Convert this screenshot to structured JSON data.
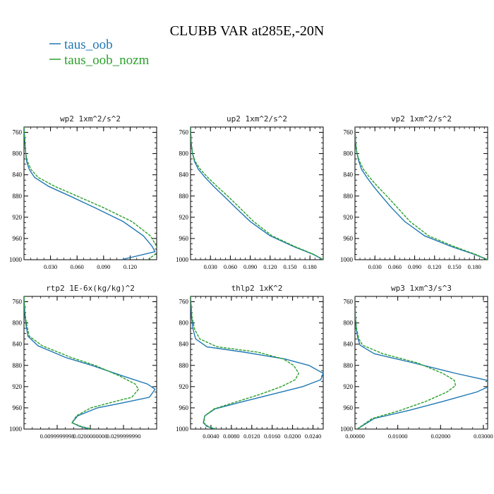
{
  "figure": {
    "title": "CLUBB VAR at285E,-20N",
    "legend": [
      {
        "label": "taus_oob",
        "color": "#1f77b4"
      },
      {
        "label": "taus_oob_nozm",
        "color": "#2ca02c"
      }
    ]
  },
  "chart_data": [
    {
      "type": "line",
      "title": "wp2  1xm^2/s^2",
      "xlim": [
        0.0,
        0.15
      ],
      "ylim": [
        1000,
        750
      ],
      "y_ticks": [
        760,
        800,
        840,
        880,
        920,
        960,
        1000
      ],
      "x_ticks": [
        0.03,
        0.06,
        0.09,
        0.12
      ],
      "x_tick_labels": [
        "0.030",
        "0.060",
        "0.090",
        "0.120"
      ],
      "series": [
        {
          "name": "taus_oob",
          "x": [
            0.0,
            0.001,
            0.002,
            0.003,
            0.006,
            0.012,
            0.028,
            0.052,
            0.08,
            0.112,
            0.135,
            0.145,
            0.148,
            0.11
          ],
          "y": [
            750,
            780,
            800,
            815,
            830,
            845,
            862,
            880,
            902,
            928,
            955,
            975,
            985,
            1000
          ]
        },
        {
          "name": "taus_oob_nozm",
          "x": [
            0.0,
            0.001,
            0.002,
            0.004,
            0.008,
            0.016,
            0.035,
            0.06,
            0.09,
            0.122,
            0.143,
            0.15,
            0.152,
            0.14
          ],
          "y": [
            750,
            780,
            800,
            815,
            830,
            845,
            862,
            880,
            902,
            928,
            955,
            975,
            985,
            1000
          ]
        }
      ]
    },
    {
      "type": "line",
      "title": "up2  1xm^2/s^2",
      "xlim": [
        0.0,
        0.2
      ],
      "ylim": [
        1000,
        750
      ],
      "y_ticks": [
        760,
        800,
        840,
        880,
        920,
        960,
        1000
      ],
      "x_ticks": [
        0.03,
        0.06,
        0.09,
        0.12,
        0.15,
        0.18
      ],
      "x_tick_labels": [
        "0.030",
        "0.060",
        "0.090",
        "0.120",
        "0.150",
        "0.180"
      ],
      "series": [
        {
          "name": "taus_oob",
          "x": [
            0.0,
            0.001,
            0.003,
            0.006,
            0.012,
            0.022,
            0.035,
            0.05,
            0.068,
            0.09,
            0.12,
            0.155,
            0.185,
            0.2
          ],
          "y": [
            750,
            780,
            800,
            815,
            830,
            845,
            862,
            880,
            902,
            928,
            955,
            975,
            990,
            1000
          ]
        },
        {
          "name": "taus_oob_nozm",
          "x": [
            0.0,
            0.001,
            0.003,
            0.007,
            0.015,
            0.026,
            0.04,
            0.056,
            0.074,
            0.095,
            0.123,
            0.157,
            0.186,
            0.2
          ],
          "y": [
            750,
            780,
            800,
            815,
            830,
            845,
            862,
            880,
            902,
            928,
            955,
            975,
            990,
            1000
          ]
        }
      ]
    },
    {
      "type": "line",
      "title": "vp2  1xm^2/s^2",
      "xlim": [
        0.0,
        0.2
      ],
      "ylim": [
        1000,
        750
      ],
      "y_ticks": [
        760,
        800,
        840,
        880,
        920,
        960,
        1000
      ],
      "x_ticks": [
        0.03,
        0.06,
        0.09,
        0.12,
        0.15,
        0.18
      ],
      "x_tick_labels": [
        "0.030",
        "0.060",
        "0.090",
        "0.120",
        "0.150",
        "0.180"
      ],
      "series": [
        {
          "name": "taus_oob",
          "x": [
            0.0,
            0.001,
            0.003,
            0.006,
            0.01,
            0.018,
            0.028,
            0.04,
            0.055,
            0.075,
            0.105,
            0.145,
            0.18,
            0.2
          ],
          "y": [
            750,
            780,
            800,
            815,
            830,
            845,
            862,
            880,
            902,
            928,
            955,
            975,
            990,
            1000
          ]
        },
        {
          "name": "taus_oob_nozm",
          "x": [
            0.0,
            0.001,
            0.003,
            0.007,
            0.013,
            0.022,
            0.034,
            0.048,
            0.064,
            0.083,
            0.111,
            0.149,
            0.182,
            0.2
          ],
          "y": [
            750,
            780,
            800,
            815,
            830,
            845,
            862,
            880,
            902,
            928,
            955,
            975,
            990,
            1000
          ]
        }
      ]
    },
    {
      "type": "line",
      "title": "rtp2  1E-6x(kg/kg)^2",
      "xlim": [
        0.0,
        0.04
      ],
      "ylim": [
        1000,
        750
      ],
      "y_ticks": [
        760,
        800,
        840,
        880,
        920,
        960,
        1000
      ],
      "x_ticks": [
        0.01,
        0.02,
        0.03
      ],
      "x_tick_labels": [
        "0.0099999998",
        "0.0200000000",
        "0.0299999990"
      ],
      "series": [
        {
          "name": "taus_oob",
          "x": [
            0.0,
            0.0002,
            0.0005,
            0.0012,
            0.0042,
            0.0125,
            0.0205,
            0.0298,
            0.0372,
            0.0395,
            0.0378,
            0.0302,
            0.0222,
            0.0162,
            0.0145,
            0.0168,
            0.0198
          ],
          "y": [
            750,
            780,
            800,
            825,
            843,
            865,
            880,
            900,
            915,
            925,
            940,
            950,
            960,
            975,
            988,
            995,
            1000
          ]
        },
        {
          "name": "taus_oob_nozm",
          "x": [
            0.0,
            0.0003,
            0.0007,
            0.0016,
            0.0055,
            0.0142,
            0.0215,
            0.0288,
            0.0335,
            0.0345,
            0.0325,
            0.0262,
            0.0202,
            0.0158,
            0.0145,
            0.0172,
            0.0205
          ],
          "y": [
            750,
            780,
            800,
            825,
            843,
            865,
            880,
            900,
            915,
            925,
            940,
            950,
            960,
            975,
            988,
            995,
            1000
          ]
        }
      ]
    },
    {
      "type": "line",
      "title": "thlp2  1xK^2",
      "xlim": [
        0.0,
        0.026
      ],
      "ylim": [
        1000,
        750
      ],
      "y_ticks": [
        760,
        800,
        840,
        880,
        920,
        960,
        1000
      ],
      "x_ticks": [
        0.004,
        0.008,
        0.012,
        0.016,
        0.02,
        0.024
      ],
      "x_tick_labels": [
        "0.0040",
        "0.0080",
        "0.0120",
        "0.0160",
        "0.0200",
        "0.0240"
      ],
      "series": [
        {
          "name": "taus_oob",
          "x": [
            0.0,
            0.0002,
            0.0005,
            0.001,
            0.0032,
            0.0105,
            0.0185,
            0.0232,
            0.026,
            0.0255,
            0.022,
            0.0158,
            0.0095,
            0.0048,
            0.0028,
            0.0025,
            0.0032,
            0.0048
          ],
          "y": [
            750,
            790,
            812,
            830,
            845,
            855,
            868,
            880,
            895,
            907,
            920,
            935,
            950,
            962,
            975,
            988,
            995,
            1000
          ]
        },
        {
          "name": "taus_oob_nozm",
          "x": [
            0.0,
            0.0003,
            0.0008,
            0.0018,
            0.0052,
            0.0132,
            0.0182,
            0.0202,
            0.0212,
            0.0205,
            0.0178,
            0.0135,
            0.0085,
            0.0046,
            0.0028,
            0.0026,
            0.0034,
            0.005
          ],
          "y": [
            750,
            790,
            812,
            830,
            845,
            855,
            868,
            880,
            895,
            907,
            920,
            935,
            950,
            962,
            975,
            988,
            995,
            1000
          ]
        }
      ]
    },
    {
      "type": "line",
      "title": "wp3  1xm^3/s^3",
      "xlim": [
        0.0,
        0.031
      ],
      "ylim": [
        1000,
        750
      ],
      "y_ticks": [
        760,
        800,
        840,
        880,
        920,
        960,
        1000
      ],
      "x_ticks": [
        0.0,
        0.01,
        0.02,
        0.03
      ],
      "x_tick_labels": [
        "0.00000",
        "0.01000",
        "0.02000",
        "0.03000"
      ],
      "series": [
        {
          "name": "taus_oob",
          "x": [
            0.0,
            0.0001,
            0.0003,
            0.0007,
            0.0012,
            0.0045,
            0.0135,
            0.0235,
            0.0308,
            0.0318,
            0.0285,
            0.0205,
            0.0125,
            0.0045,
            0.0005
          ],
          "y": [
            750,
            790,
            812,
            830,
            842,
            858,
            875,
            895,
            908,
            918,
            930,
            948,
            965,
            980,
            1000
          ]
        },
        {
          "name": "taus_oob_nozm",
          "x": [
            0.0,
            0.0001,
            0.0004,
            0.0009,
            0.0018,
            0.0065,
            0.0145,
            0.0205,
            0.0232,
            0.0235,
            0.0215,
            0.0165,
            0.0105,
            0.004,
            0.0005
          ],
          "y": [
            750,
            790,
            812,
            830,
            842,
            858,
            875,
            895,
            908,
            918,
            930,
            948,
            965,
            980,
            1000
          ]
        }
      ]
    }
  ]
}
